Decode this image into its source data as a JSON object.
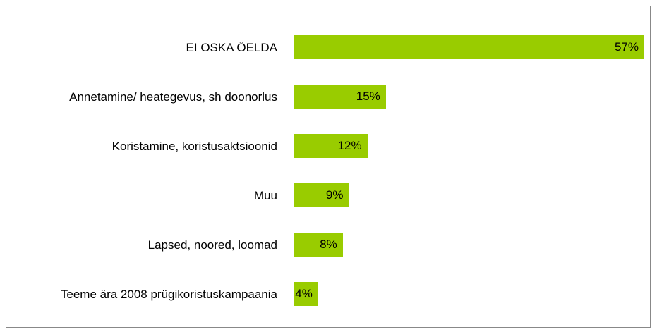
{
  "chart_data": {
    "type": "bar",
    "orientation": "horizontal",
    "categories": [
      "EI OSKA ÖELDA",
      "Annetamine/ heategevus, sh doonorlus",
      "Koristamine, koristusaktsioonid",
      "Muu",
      "Lapsed, noored, loomad",
      "Teeme ära 2008 prügikoristuskampaania"
    ],
    "values": [
      57,
      15,
      12,
      9,
      8,
      4
    ],
    "value_labels": [
      "57%",
      "15%",
      "12%",
      "9%",
      "8%",
      "4%"
    ],
    "color": "#99cc00"
  }
}
